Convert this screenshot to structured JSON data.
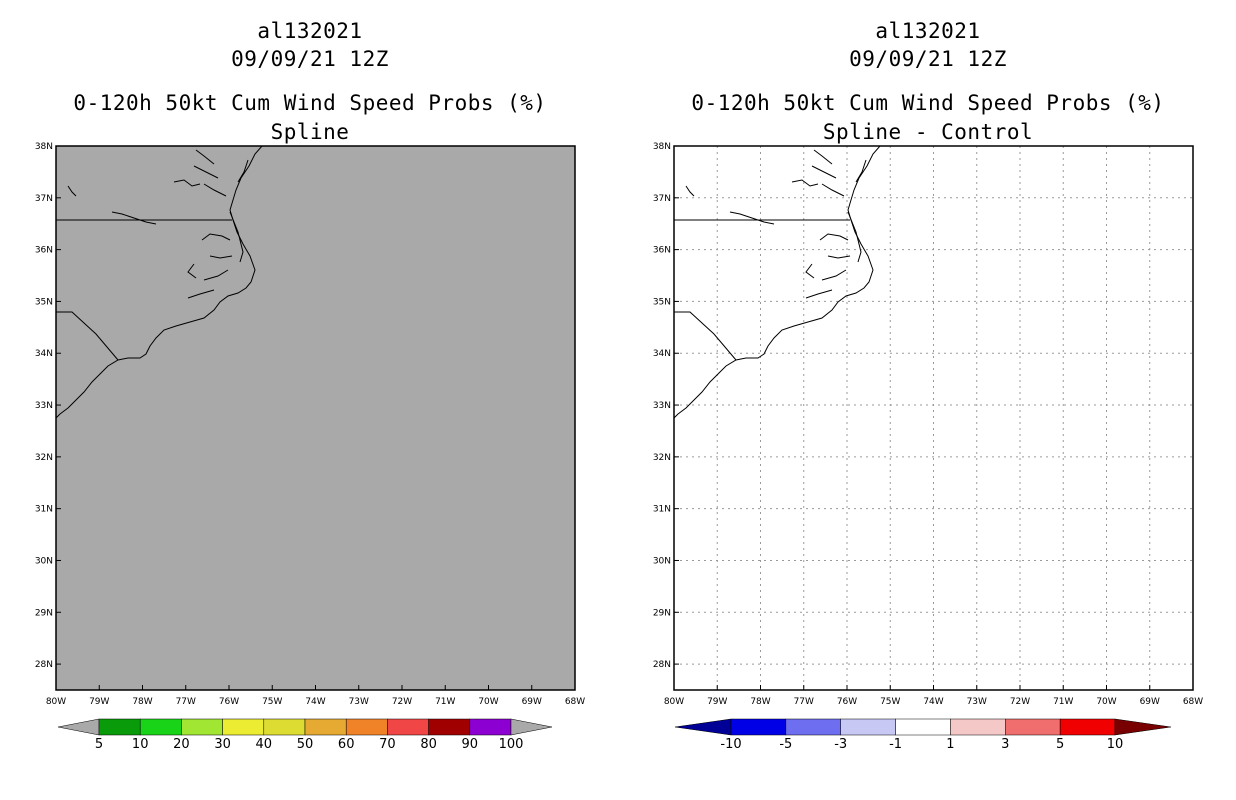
{
  "chart_data": [
    {
      "type": "heatmap",
      "title_lines": [
        "al132021",
        "09/09/21 12Z",
        "0-120h 50kt Cum Wind Speed Probs (%)",
        "Spline"
      ],
      "x_ticks": [
        "80W",
        "79W",
        "78W",
        "77W",
        "76W",
        "75W",
        "74W",
        "73W",
        "72W",
        "71W",
        "70W",
        "69W",
        "68W"
      ],
      "y_ticks": [
        "28N",
        "29N",
        "30N",
        "31N",
        "32N",
        "33N",
        "34N",
        "35N",
        "36N",
        "37N",
        "38N"
      ],
      "xlim": [
        -80,
        -68
      ],
      "ylim": [
        27.5,
        38
      ],
      "grid": false,
      "field": "no probabilities above lowest contour (shaded uniformly gray)",
      "background_color": "#a9a9a9",
      "colorbar": {
        "labels": [
          "5",
          "10",
          "20",
          "30",
          "40",
          "50",
          "60",
          "70",
          "80",
          "90",
          "100"
        ],
        "colors": [
          "#0a9b0a",
          "#19d319",
          "#a0e632",
          "#ecec32",
          "#dcdc32",
          "#e6aa32",
          "#f08228",
          "#f04646",
          "#a00000",
          "#8c00d2"
        ],
        "end_colors": [
          "#a9a9a9",
          "#a9a9a9"
        ]
      }
    },
    {
      "type": "heatmap",
      "title_lines": [
        "al132021",
        "09/09/21 12Z",
        "0-120h 50kt Cum Wind Speed Probs (%)",
        "Spline - Control"
      ],
      "x_ticks": [
        "80W",
        "79W",
        "78W",
        "77W",
        "76W",
        "75W",
        "74W",
        "73W",
        "72W",
        "71W",
        "70W",
        "69W",
        "68W"
      ],
      "y_ticks": [
        "28N",
        "29N",
        "30N",
        "31N",
        "32N",
        "33N",
        "34N",
        "35N",
        "36N",
        "37N",
        "38N"
      ],
      "xlim": [
        -80,
        -68
      ],
      "ylim": [
        27.5,
        38
      ],
      "grid": true,
      "field": "zero difference everywhere (white)",
      "background_color": "#ffffff",
      "colorbar": {
        "labels": [
          "-10",
          "-5",
          "-3",
          "-1",
          "1",
          "3",
          "5",
          "10"
        ],
        "colors": [
          "#0000e6",
          "#6e6ef0",
          "#c8c8f5",
          "#ffffff",
          "#f5c8c8",
          "#f06e6e",
          "#f00000"
        ],
        "end_colors": [
          "#000096",
          "#780000"
        ]
      }
    }
  ]
}
